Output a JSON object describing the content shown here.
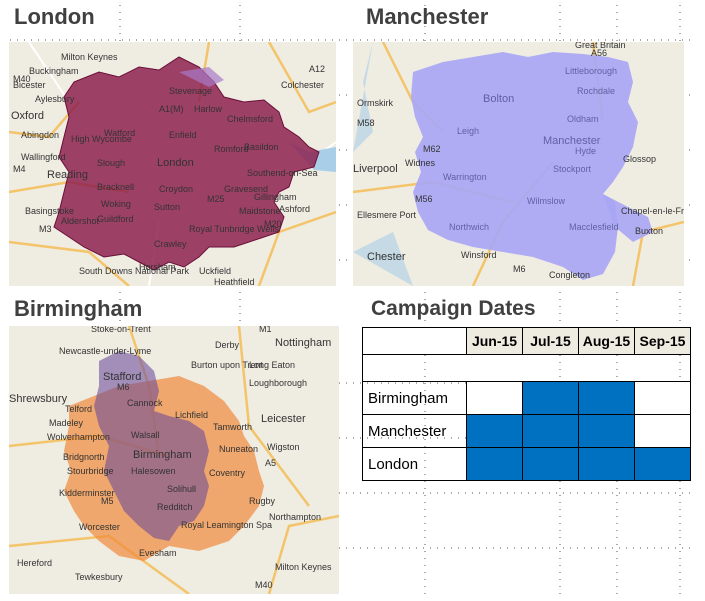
{
  "titles": {
    "london": "London",
    "manchester": "Manchester",
    "birmingham": "Birmingham",
    "campaign": "Campaign Dates"
  },
  "maps": {
    "london": {
      "labels": [
        "Milton Keynes",
        "Buckingham",
        "Bicester",
        "Aylesbury",
        "Oxford",
        "Abingdon",
        "Wallingford",
        "Reading",
        "Basingstoke",
        "Aldershot",
        "Stevenage",
        "Harlow",
        "Chelmsford",
        "Colchester",
        "Watford",
        "Enfield",
        "High Wycombe",
        "London",
        "Romford",
        "Basildon",
        "Southend-on-Sea",
        "Slough",
        "Bracknell",
        "Croydon",
        "Gravesend",
        "Woking",
        "Sutton",
        "Gillingham",
        "Maidstone",
        "Guildford",
        "Royal Tunbridge Wells",
        "Ashford",
        "Crawley",
        "Horsham",
        "Uckfield",
        "Heathfield",
        "South Downs National Park"
      ],
      "road_labels": [
        "M40",
        "M4",
        "M3",
        "M25",
        "M20",
        "A12",
        "A1(M)"
      ]
    },
    "manchester": {
      "labels": [
        "Ormskirk",
        "Bolton",
        "Rochdale",
        "Littleborough",
        "Oldham",
        "Leigh",
        "Manchester",
        "Hyde",
        "Stockport",
        "Warrington",
        "Widnes",
        "Northwich",
        "Wilmslow",
        "Macclesfield",
        "Chapel-en-le-Frith",
        "Buxton",
        "Ellesmere Port",
        "Chester",
        "Winsford",
        "Congleton",
        "Great Britain",
        "Glossop",
        "Liverpool"
      ],
      "road_labels": [
        "M58",
        "M6",
        "M62",
        "M56",
        "A56"
      ]
    },
    "birmingham": {
      "labels": [
        "Stoke-on-Trent",
        "Derby",
        "Nottingham",
        "Newcastle-under-Lyme",
        "Burton upon Trent",
        "Long Eaton",
        "Stafford",
        "Loughborough",
        "Shrewsbury",
        "Telford",
        "Cannock",
        "Lichfield",
        "Tamworth",
        "Leicester",
        "Madeley",
        "Wolverhampton",
        "Walsall",
        "Nuneaton",
        "Wigston",
        "Bridgnorth",
        "Stourbridge",
        "Birmingham",
        "Halesowen",
        "Coventry",
        "Kidderminster",
        "Solihull",
        "Rugby",
        "Redditch",
        "Royal Leamington Spa",
        "Worcester",
        "Northampton",
        "Evesham",
        "Hereford",
        "Tewkesbury",
        "Milton Keynes"
      ],
      "road_labels": [
        "M6",
        "M1",
        "M5",
        "M40",
        "A5"
      ]
    }
  },
  "campaign": {
    "months": [
      "Jun-15",
      "Jul-15",
      "Aug-15",
      "Sep-15"
    ],
    "rows": [
      {
        "city": "Birmingham",
        "active": [
          false,
          true,
          true,
          false
        ]
      },
      {
        "city": "Manchester",
        "active": [
          true,
          true,
          true,
          false
        ]
      },
      {
        "city": "London",
        "active": [
          true,
          true,
          true,
          true
        ]
      }
    ],
    "active_color": "#0070c0"
  },
  "colors": {
    "london_region": "#8b1a4a",
    "manchester_region": "#a9a6f5",
    "birmingham_outer": "#f08a3c",
    "birmingham_inner": "#6a4a9a",
    "map_base": "#efece2",
    "title_text": "#404040"
  }
}
